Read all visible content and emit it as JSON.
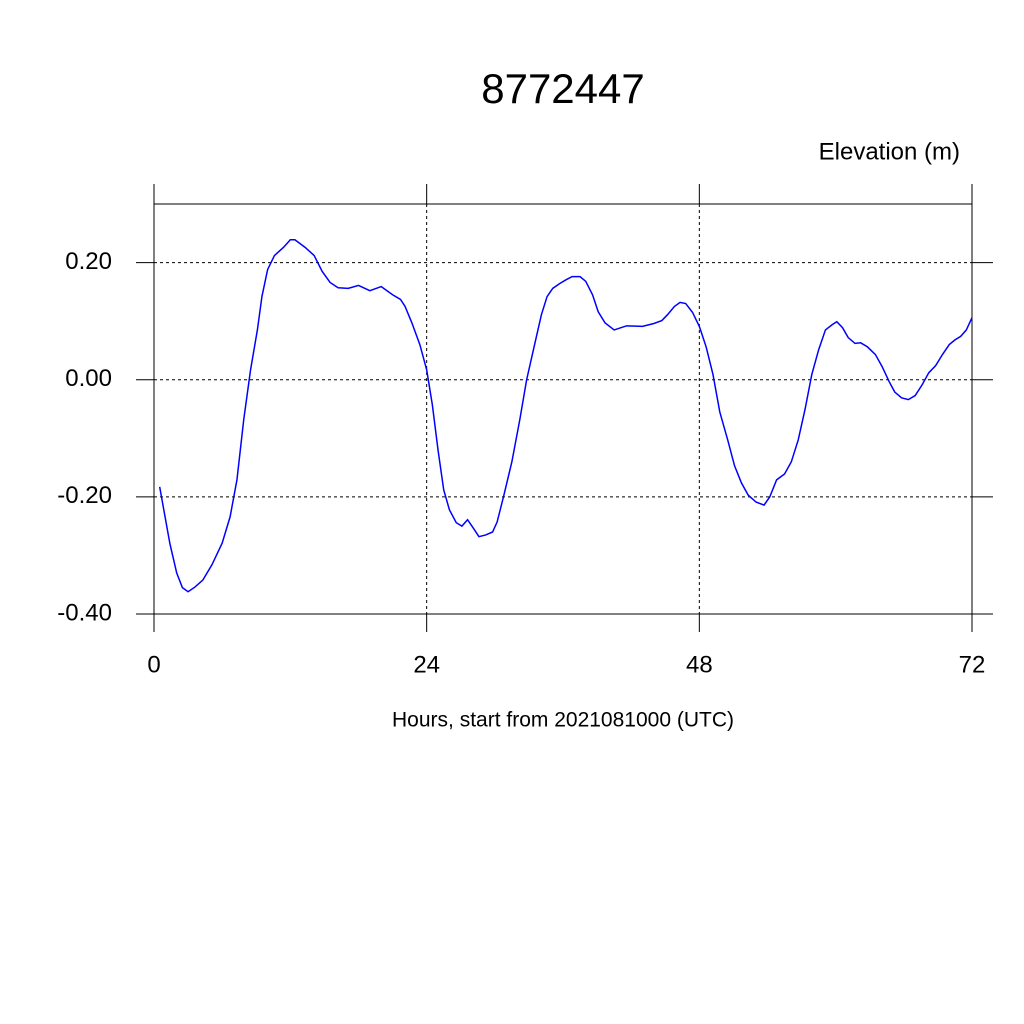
{
  "chart_data": {
    "type": "line",
    "title": "8772447",
    "ylabel": "Elevation (m)",
    "xlabel": "Hours, start from 2021081000 (UTC)",
    "xlim": [
      0,
      72
    ],
    "xticks": [
      0,
      24,
      48,
      72
    ],
    "ylim": [
      -0.4,
      0.3
    ],
    "yticks": [
      {
        "value": 0.2,
        "label": "0.20"
      },
      {
        "value": 0,
        "label": "0.00"
      },
      {
        "value": -0.2,
        "label": "-0.20"
      },
      {
        "value": -0.4,
        "label": "-0.40"
      }
    ],
    "grid": true,
    "x": [
      0.5,
      1.4,
      2,
      2.5,
      3,
      3.6,
      4.3,
      5.1,
      6,
      6.7,
      7.3,
      7.9,
      8.5,
      9.1,
      9.5,
      10,
      10.6,
      11.4,
      12,
      12.4,
      13.3,
      14.1,
      14.8,
      15.5,
      16.2,
      17.1,
      18,
      19,
      20,
      21,
      21.7,
      22.1,
      22.7,
      23.4,
      24,
      24.5,
      25,
      25.5,
      26,
      26.6,
      27.1,
      27.6,
      28.2,
      28.6,
      29.2,
      29.8,
      30.2,
      30.8,
      31.5,
      32.2,
      32.8,
      33.5,
      34.1,
      34.6,
      35.1,
      35.7,
      36.3,
      36.8,
      37.5,
      38,
      38.6,
      39.1,
      39.7,
      40.5,
      41.6,
      43,
      44,
      44.7,
      45.2,
      45.8,
      46.3,
      46.8,
      47.4,
      48,
      48.6,
      49.2,
      49.8,
      50.5,
      51.1,
      51.7,
      52.3,
      53,
      53.7,
      54.2,
      54.8,
      55.5,
      56.1,
      56.7,
      57.3,
      57.9,
      58.5,
      59.1,
      59.7,
      60.1,
      60.6,
      61.1,
      61.7,
      62.2,
      62.8,
      63.5,
      64.1,
      64.7,
      65.2,
      65.8,
      66.4,
      67,
      67.6,
      68.2,
      68.8,
      69.4,
      70,
      70.5,
      71,
      71.5,
      72
    ],
    "series": [
      {
        "name": "Elevation",
        "color": "#0000ff",
        "values": [
          -0.183,
          -0.28,
          -0.33,
          -0.355,
          -0.362,
          -0.354,
          -0.342,
          -0.316,
          -0.279,
          -0.234,
          -0.171,
          -0.068,
          0.017,
          0.085,
          0.142,
          0.188,
          0.212,
          0.226,
          0.239,
          0.239,
          0.226,
          0.212,
          0.185,
          0.166,
          0.157,
          0.156,
          0.161,
          0.152,
          0.159,
          0.145,
          0.137,
          0.125,
          0.097,
          0.06,
          0.017,
          -0.043,
          -0.12,
          -0.188,
          -0.222,
          -0.244,
          -0.25,
          -0.239,
          -0.256,
          -0.268,
          -0.265,
          -0.26,
          -0.243,
          -0.197,
          -0.14,
          -0.068,
          0,
          0.06,
          0.111,
          0.142,
          0.156,
          0.164,
          0.171,
          0.176,
          0.176,
          0.168,
          0.145,
          0.116,
          0.097,
          0.085,
          0.092,
          0.091,
          0.096,
          0.101,
          0.111,
          0.125,
          0.132,
          0.13,
          0.115,
          0.091,
          0.056,
          0.009,
          -0.055,
          -0.103,
          -0.147,
          -0.176,
          -0.197,
          -0.209,
          -0.214,
          -0.2,
          -0.171,
          -0.161,
          -0.14,
          -0.103,
          -0.051,
          0.009,
          0.051,
          0.085,
          0.094,
          0.099,
          0.089,
          0.072,
          0.062,
          0.063,
          0.056,
          0.043,
          0.022,
          -0.003,
          -0.021,
          -0.031,
          -0.034,
          -0.027,
          -0.009,
          0.012,
          0.024,
          0.043,
          0.06,
          0.068,
          0.074,
          0.085,
          0.106
        ]
      }
    ]
  }
}
